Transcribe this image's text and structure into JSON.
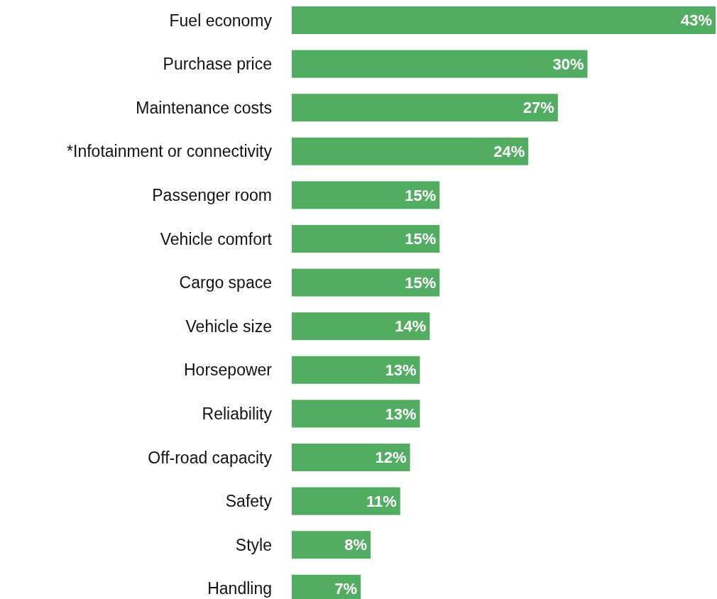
{
  "chart_data": {
    "type": "bar",
    "orientation": "horizontal",
    "categories": [
      "Fuel economy",
      "Purchase price",
      "Maintenance costs",
      "*Infotainment or connectivity",
      "Passenger room",
      "Vehicle comfort",
      "Cargo space",
      "Vehicle size",
      "Horsepower",
      "Reliability",
      "Off-road capacity",
      "Safety",
      "Style",
      "Handling"
    ],
    "values": [
      43,
      30,
      27,
      24,
      15,
      15,
      15,
      14,
      13,
      13,
      12,
      11,
      8,
      7
    ],
    "value_labels": [
      "43%",
      "30%",
      "27%",
      "24%",
      "15%",
      "15%",
      "15%",
      "14%",
      "13%",
      "13%",
      "12%",
      "11%",
      "8%",
      "7%"
    ],
    "color": "#52ad62"
  }
}
